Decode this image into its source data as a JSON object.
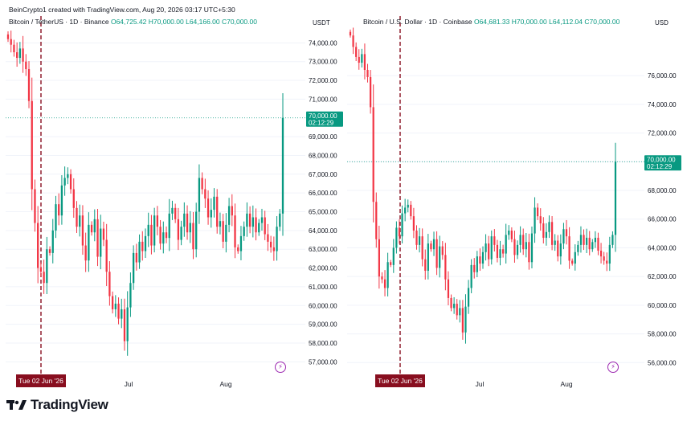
{
  "credit": "BeinCrypto1 created with TradingView.com, Aug 20, 2026 03:17 UTC+5:30",
  "brand": "TradingView",
  "boost_icon": "lightning-bolt-icon",
  "colors": {
    "up": "#089981",
    "down": "#f23645",
    "marker": "#880e1f",
    "grid": "#f0f3fa"
  },
  "chart_data": [
    {
      "type": "candlestick",
      "symbol": "Bitcoin / TetherUS · 1D · Binance",
      "ohlc_labels": {
        "o": "O64,725.42",
        "h": "H70,000.00",
        "l": "L64,166.00",
        "c": "C70,000.00"
      },
      "currency": "USDT",
      "ylim": [
        56500,
        74700
      ],
      "y_ticks": [
        "74,000.00",
        "73,000.00",
        "72,000.00",
        "71,000.00",
        "69,000.00",
        "68,000.00",
        "67,000.00",
        "66,000.00",
        "65,000.00",
        "64,000.00",
        "63,000.00",
        "62,000.00",
        "61,000.00",
        "60,000.00",
        "59,000.00",
        "58,000.00",
        "57,000.00"
      ],
      "x_labels": [
        "Jul",
        "Aug"
      ],
      "event_label": "Tue 02 Jun '26",
      "last_price": "70,000.00",
      "countdown": "02:12:29",
      "closes": [
        74200,
        73900,
        73500,
        73200,
        73700,
        73000,
        72600,
        70900,
        66200,
        64400,
        62000,
        61800,
        61200,
        63000,
        62800,
        64000,
        65400,
        64800,
        66400,
        66800,
        67000,
        66200,
        65200,
        64200,
        64800,
        63200,
        62400,
        64300,
        63900,
        64600,
        62600,
        64100,
        63500,
        61800,
        60500,
        59800,
        60100,
        59300,
        59800,
        58100,
        59900,
        61200,
        62800,
        62300,
        63400,
        62900,
        63700,
        64300,
        63200,
        64800,
        64200,
        63300,
        63900,
        63600,
        64900,
        65200,
        64600,
        63500,
        64200,
        64900,
        63900,
        64400,
        63000,
        65000,
        66800,
        66200,
        65700,
        64700,
        65100,
        65800,
        64200,
        64500,
        63400,
        64300,
        65300,
        64800,
        63100,
        62900,
        63700,
        64200,
        64900,
        64200,
        64700,
        63900,
        64400,
        64700,
        63800,
        63400,
        63100,
        62900,
        64200,
        64900,
        70000
      ]
    },
    {
      "type": "candlestick",
      "symbol": "Bitcoin / U.S. Dollar · 1D · Coinbase",
      "ohlc_labels": {
        "o": "O64,681.33",
        "h": "H70,000.00",
        "l": "L64,112.04",
        "c": "C70,000.00"
      },
      "currency": "USD",
      "ylim": [
        55400,
        79200
      ],
      "y_ticks": [
        "76,000.00",
        "74,000.00",
        "72,000.00",
        "70,000.00",
        "68,000.00",
        "66,000.00",
        "64,000.00",
        "62,000.00",
        "60,000.00",
        "58,000.00",
        "56,000.00"
      ],
      "x_labels": [
        "Jul",
        "Aug"
      ],
      "event_label": "Tue 02 Jun '26",
      "last_price": "70,000.00",
      "countdown": "02:12:29",
      "closes": [
        78800,
        78000,
        77300,
        76900,
        77500,
        76400,
        75900,
        73800,
        67200,
        64600,
        62000,
        61800,
        61200,
        63000,
        62800,
        64000,
        65400,
        64800,
        66400,
        66800,
        67000,
        66200,
        65200,
        64200,
        64800,
        63200,
        62400,
        64300,
        63900,
        64600,
        62600,
        64100,
        63500,
        61800,
        60500,
        59800,
        60100,
        59300,
        59800,
        58100,
        59900,
        61200,
        62800,
        62300,
        63400,
        62900,
        63700,
        64300,
        63200,
        64800,
        64200,
        63300,
        63900,
        63600,
        64900,
        65200,
        64600,
        63500,
        64200,
        64900,
        63900,
        64400,
        63000,
        65000,
        66800,
        66200,
        65700,
        64700,
        65100,
        65800,
        64200,
        64500,
        63400,
        64300,
        65300,
        64800,
        63100,
        62900,
        63700,
        64200,
        64900,
        64200,
        64700,
        63900,
        64400,
        64700,
        63800,
        63400,
        63100,
        62900,
        64200,
        64900,
        70000
      ]
    }
  ]
}
